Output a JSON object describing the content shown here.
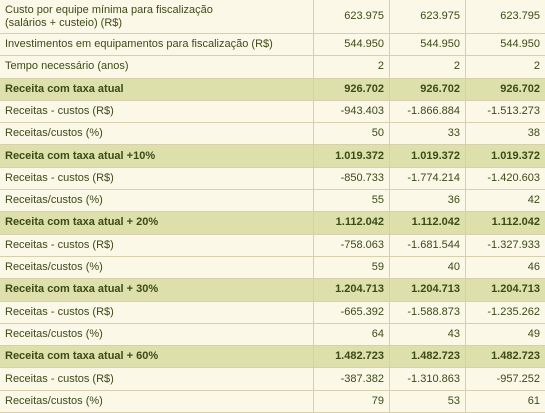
{
  "table": {
    "rows": [
      {
        "label": [
          "Custo por equipe mínima para fiscalização",
          "(salários + custeio) (R$)"
        ],
        "values": [
          "623.975",
          "623.975",
          "623.795"
        ],
        "highlight": false
      },
      {
        "label": [
          "Investimentos em equipamentos para fiscalização (R$)"
        ],
        "values": [
          "544.950",
          "544.950",
          "544.950"
        ],
        "highlight": false
      },
      {
        "label": [
          "Tempo necessário (anos)"
        ],
        "values": [
          "2",
          "2",
          "2"
        ],
        "highlight": false
      },
      {
        "label": [
          "Receita com taxa atual"
        ],
        "values": [
          "926.702",
          "926.702",
          "926.702"
        ],
        "highlight": true
      },
      {
        "label": [
          "Receitas - custos (R$)"
        ],
        "values": [
          "-943.403",
          "-1.866.884",
          "-1.513.273"
        ],
        "highlight": false
      },
      {
        "label": [
          "Receitas/custos (%)"
        ],
        "values": [
          "50",
          "33",
          "38"
        ],
        "highlight": false
      },
      {
        "label": [
          "Receita com taxa atual +10%"
        ],
        "values": [
          "1.019.372",
          "1.019.372",
          "1.019.372"
        ],
        "highlight": true
      },
      {
        "label": [
          "Receitas - custos (R$)"
        ],
        "values": [
          "-850.733",
          "-1.774.214",
          "-1.420.603"
        ],
        "highlight": false
      },
      {
        "label": [
          "Receitas/custos (%)"
        ],
        "values": [
          "55",
          "36",
          "42"
        ],
        "highlight": false
      },
      {
        "label": [
          "Receita com taxa atual + 20%"
        ],
        "values": [
          "1.112.042",
          "1.112.042",
          "1.112.042"
        ],
        "highlight": true
      },
      {
        "label": [
          "Receitas - custos (R$)"
        ],
        "values": [
          "-758.063",
          "-1.681.544",
          "-1.327.933"
        ],
        "highlight": false
      },
      {
        "label": [
          "Receitas/custos (%)"
        ],
        "values": [
          "59",
          "40",
          "46"
        ],
        "highlight": false
      },
      {
        "label": [
          "Receita com taxa atual + 30%"
        ],
        "values": [
          "1.204.713",
          "1.204.713",
          "1.204.713"
        ],
        "highlight": true
      },
      {
        "label": [
          "Receitas - custos (R$)"
        ],
        "values": [
          "-665.392",
          "-1.588.873",
          "-1.235.262"
        ],
        "highlight": false
      },
      {
        "label": [
          "Receitas/custos (%)"
        ],
        "values": [
          "64",
          "43",
          "49"
        ],
        "highlight": false
      },
      {
        "label": [
          "Receita com taxa atual + 60%"
        ],
        "values": [
          "1.482.723",
          "1.482.723",
          "1.482.723"
        ],
        "highlight": true
      },
      {
        "label": [
          "Receitas - custos (R$)"
        ],
        "values": [
          "-387.382",
          "-1.310.863",
          "-957.252"
        ],
        "highlight": false
      },
      {
        "label": [
          "Receitas/custos (%)"
        ],
        "values": [
          "79",
          "53",
          "61"
        ],
        "highlight": false
      }
    ]
  }
}
